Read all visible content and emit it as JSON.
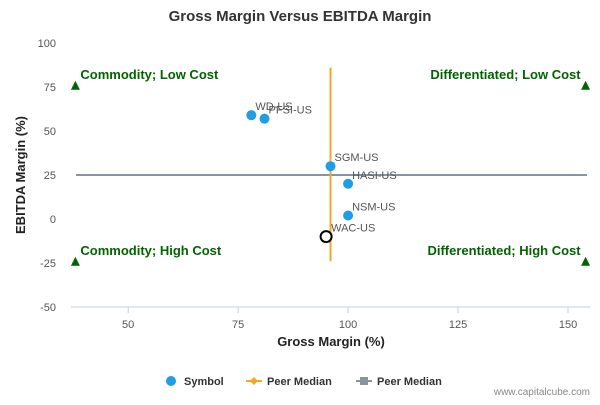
{
  "chart_data": {
    "type": "scatter",
    "title": "Gross Margin Versus EBITDA Margin",
    "xlabel": "Gross Margin (%)",
    "ylabel": "EBITDA Margin (%)",
    "xlim": [
      37,
      155
    ],
    "ylim": [
      -50,
      100
    ],
    "x_ticks": [
      50,
      75,
      100,
      125,
      150
    ],
    "y_ticks": [
      100,
      75,
      50,
      25,
      0,
      -25,
      -50
    ],
    "grid": false,
    "points": [
      {
        "label": "WD-US",
        "x": 78,
        "y": 59
      },
      {
        "label": "PFSI-US",
        "x": 81,
        "y": 57
      },
      {
        "label": "SGM-US",
        "x": 96,
        "y": 30
      },
      {
        "label": "HASI-US",
        "x": 100,
        "y": 20
      },
      {
        "label": "NSM-US",
        "x": 100,
        "y": 2
      }
    ],
    "highlight": {
      "label": "WAC-US",
      "x": 95,
      "y": -10
    },
    "peer_median": {
      "x": 96,
      "y": 25
    },
    "quadrants": [
      {
        "label": "Commodity; Low Cost",
        "x": 38,
        "y": 76,
        "anchor": "start"
      },
      {
        "label": "Differentiated; Low Cost",
        "x": 154,
        "y": 76,
        "anchor": "end"
      },
      {
        "label": "Commodity; High Cost",
        "x": 38,
        "y": -24,
        "anchor": "start"
      },
      {
        "label": "Differentiated; High Cost",
        "x": 154,
        "y": -24,
        "anchor": "end"
      }
    ],
    "legend": {
      "placement": "bottom",
      "items": [
        "Symbol",
        "Peer Median",
        "Peer Median"
      ]
    },
    "colors": {
      "point": "#1f9ee8",
      "vertical_median": "#f5a623",
      "horizontal_median": "#8a93a0",
      "quadrant": "#006400",
      "highlight": "#000000"
    }
  },
  "watermark": "www.capitalcube.com"
}
